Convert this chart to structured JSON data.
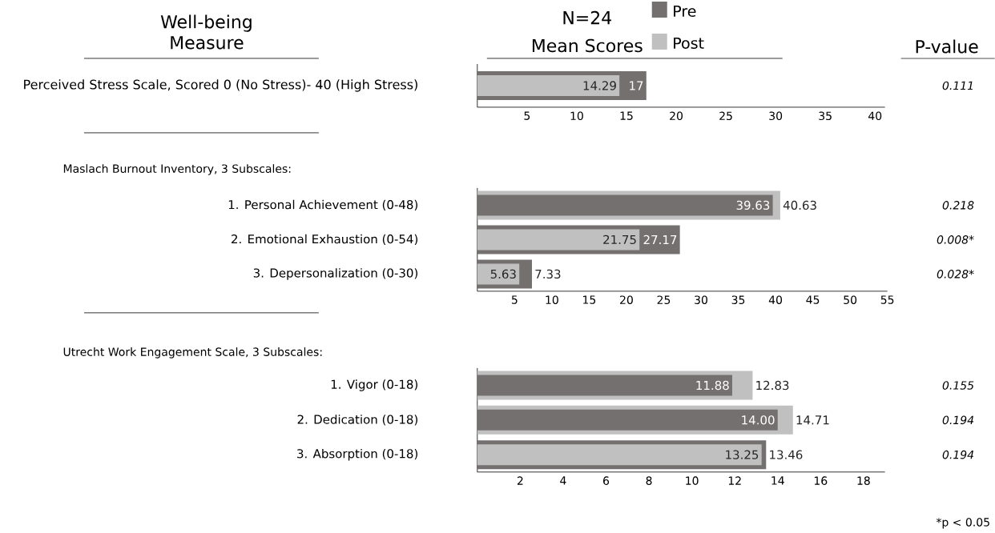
{
  "chart_data": [
    {
      "type": "bar",
      "orientation": "horizontal",
      "title": "N=24",
      "subtitle": "Mean Scores",
      "ylabel": "Well-being Measure",
      "legend": "top",
      "categories": [
        "Perceived Stress Scale, Scored 0 (No Stress)- 40 (High Stress)"
      ],
      "series": [
        {
          "name": "Pre",
          "color": "#757070",
          "values": [
            17
          ],
          "value_labels": [
            "17"
          ]
        },
        {
          "name": "Post",
          "color": "#c0c0c0",
          "values": [
            14.29
          ],
          "value_labels": [
            "14.29"
          ]
        }
      ],
      "xlim": [
        0,
        41
      ],
      "xticks": [
        5,
        10,
        15,
        20,
        25,
        30,
        35,
        40
      ],
      "annotations": [
        "P-value",
        "0.111"
      ]
    },
    {
      "type": "bar",
      "orientation": "horizontal",
      "title": "Maslach Burnout Inventory, 3 Subscales:",
      "categories": [
        "1. Personal Achievement (0-48)",
        "2. Emotional Exhaustion (0-54)",
        "3. Depersonalization (0-30)"
      ],
      "series": [
        {
          "color": "#757070",
          "values": [
            39.63,
            27.17,
            7.33
          ],
          "value_labels": [
            "39.63",
            "27.17",
            "7.33"
          ]
        },
        {
          "color": "#c0c0c0",
          "values": [
            40.63,
            21.75,
            5.63
          ],
          "value_labels": [
            "40.63",
            "21.75",
            "5.63"
          ]
        }
      ],
      "xlim": [
        0,
        55
      ],
      "xticks": [
        5,
        10,
        15,
        20,
        25,
        30,
        35,
        40,
        45,
        50,
        55
      ],
      "annotations": [
        "0.218",
        "0.008*",
        "0.028*"
      ]
    },
    {
      "type": "bar",
      "orientation": "horizontal",
      "title": "Utrecht Work Engagement Scale, 3 Subscales:",
      "categories": [
        "1. Vigor (0-18)",
        "2. Dedication (0-18)",
        "3. Absorption (0-18)"
      ],
      "series": [
        {
          "color": "#757070",
          "values": [
            11.88,
            14.0,
            13.46
          ],
          "value_labels": [
            "11.88",
            "14.00",
            "13.46"
          ]
        },
        {
          "color": "#c0c0c0",
          "values": [
            12.83,
            14.71,
            13.25
          ],
          "value_labels": [
            "12.83",
            "14.71",
            "13.25"
          ]
        }
      ],
      "xlim": [
        0,
        19
      ],
      "xticks": [
        2,
        4,
        6,
        8,
        10,
        12,
        14,
        16,
        18
      ],
      "annotations": [
        "0.155",
        "0.194",
        "0.194",
        "*p < 0.05"
      ]
    }
  ]
}
